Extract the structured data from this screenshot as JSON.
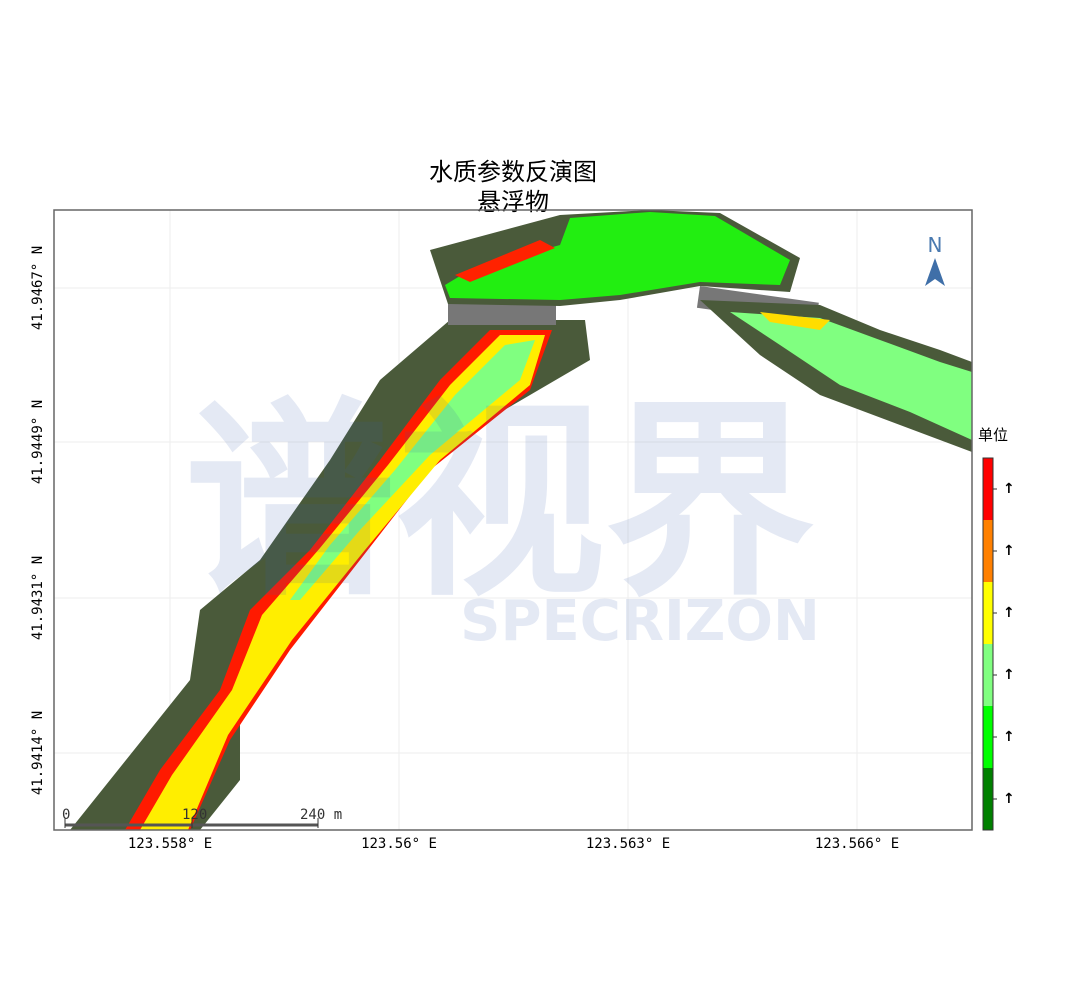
{
  "title": "水质参数反演图",
  "subtitle": "悬浮物",
  "watermark": {
    "cn": "谱视界",
    "en": "SPECRIZON"
  },
  "x_ticks": [
    "123.558° E",
    "123.56° E",
    "123.563° E",
    "123.566° E"
  ],
  "y_ticks": [
    "41.9467° N",
    "41.9449° N",
    "41.9431° N",
    "41.9414° N"
  ],
  "north_arrow": "N",
  "scale_bar": {
    "labels": [
      "0",
      "120",
      "240 m"
    ]
  },
  "legend": {
    "unit_label": "单位",
    "colors": [
      "#ff0000",
      "#ff8000",
      "#ffff00",
      "#80ff80",
      "#00ff00",
      "#008000"
    ],
    "tick_labels": [
      "↑",
      "↑",
      "↑",
      "↑",
      "↑",
      "↑"
    ]
  }
}
